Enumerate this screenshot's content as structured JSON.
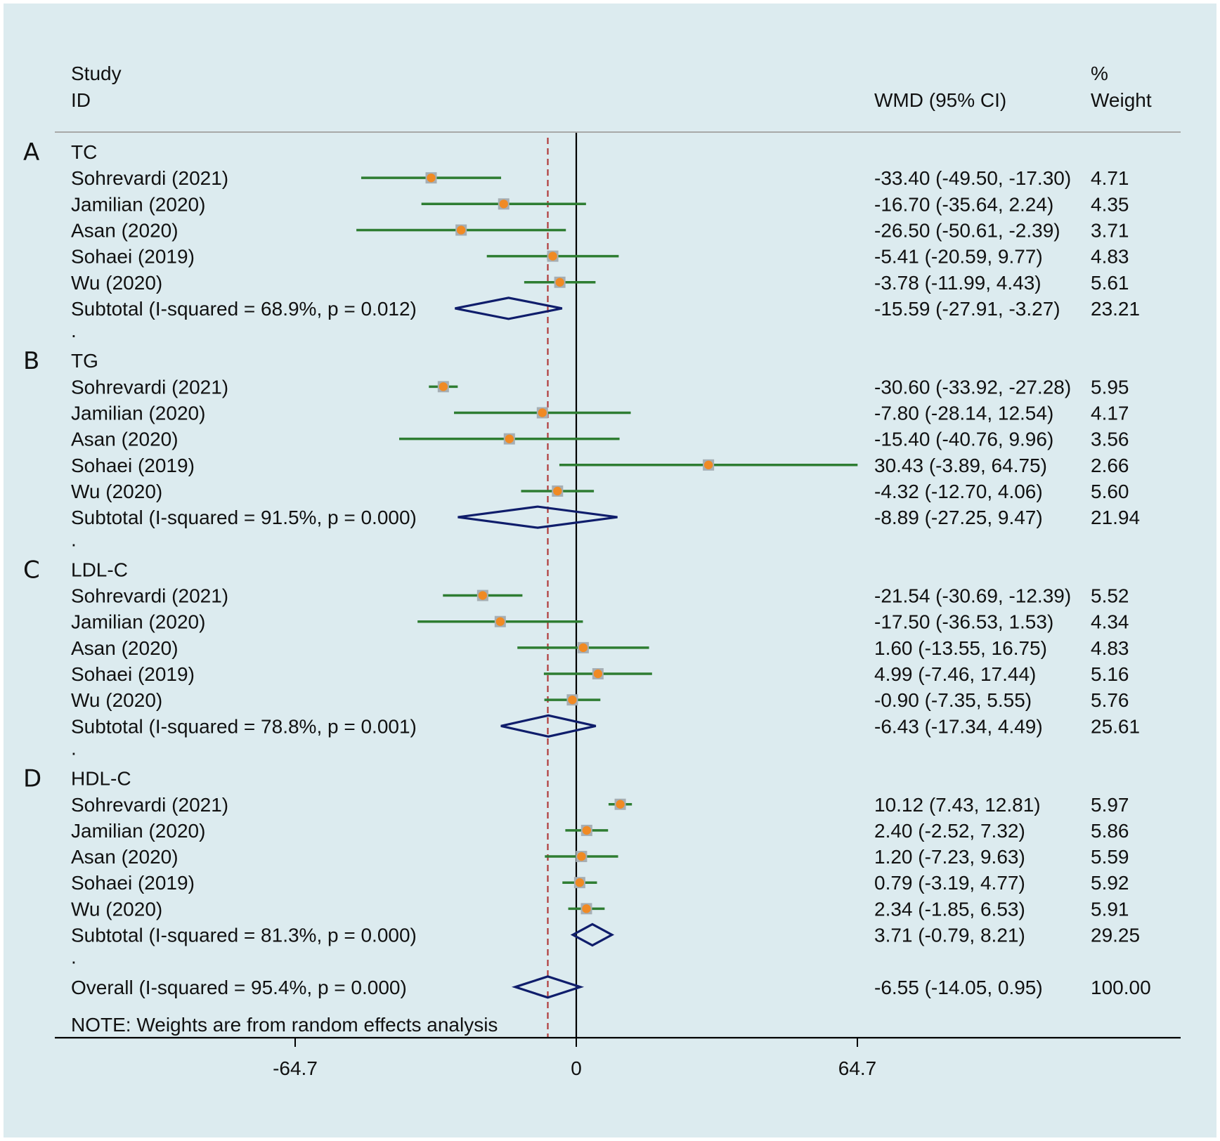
{
  "chart_data": {
    "type": "forest",
    "header": {
      "study_line1": "Study",
      "study_line2": "ID",
      "effect_label": "WMD (95% CI)",
      "weight_line1": "%",
      "weight_line2": "Weight"
    },
    "groups": [
      {
        "letter": "A",
        "name": "TC",
        "studies": [
          {
            "label": "Sohrevardi  (2021)",
            "est": -33.4,
            "lo": -49.5,
            "hi": -17.3,
            "ci_text": "-33.40 (-49.50, -17.30)",
            "weight": "4.71"
          },
          {
            "label": "Jamilian (2020)",
            "est": -16.7,
            "lo": -35.64,
            "hi": 2.24,
            "ci_text": "-16.70 (-35.64, 2.24)",
            "weight": "4.35"
          },
          {
            "label": "Asan (2020)",
            "est": -26.5,
            "lo": -50.61,
            "hi": -2.39,
            "ci_text": "-26.50 (-50.61, -2.39)",
            "weight": "3.71"
          },
          {
            "label": "Sohaei  (2019)",
            "est": -5.41,
            "lo": -20.59,
            "hi": 9.77,
            "ci_text": "-5.41 (-20.59, 9.77)",
            "weight": "4.83"
          },
          {
            "label": "Wu (2020)",
            "est": -3.78,
            "lo": -11.99,
            "hi": 4.43,
            "ci_text": "-3.78 (-11.99, 4.43)",
            "weight": "5.61"
          }
        ],
        "subtotal": {
          "label": "Subtotal  (I-squared = 68.9%, p = 0.012)",
          "est": -15.59,
          "lo": -27.91,
          "hi": -3.27,
          "ci_text": "-15.59 (-27.91, -3.27)",
          "weight": "23.21"
        }
      },
      {
        "letter": "B",
        "name": "TG",
        "studies": [
          {
            "label": "Sohrevardi (2021)",
            "est": -30.6,
            "lo": -33.92,
            "hi": -27.28,
            "ci_text": "-30.60 (-33.92, -27.28)",
            "weight": "5.95"
          },
          {
            "label": "Jamilian (2020)",
            "est": -7.8,
            "lo": -28.14,
            "hi": 12.54,
            "ci_text": "-7.80 (-28.14, 12.54)",
            "weight": "4.17"
          },
          {
            "label": "Asan (2020)",
            "est": -15.4,
            "lo": -40.76,
            "hi": 9.96,
            "ci_text": "-15.40 (-40.76, 9.96)",
            "weight": "3.56"
          },
          {
            "label": "Sohaei (2019)",
            "est": 30.43,
            "lo": -3.89,
            "hi": 64.75,
            "ci_text": "30.43 (-3.89, 64.75)",
            "weight": "2.66"
          },
          {
            "label": "Wu (2020)",
            "est": -4.32,
            "lo": -12.7,
            "hi": 4.06,
            "ci_text": "-4.32 (-12.70, 4.06)",
            "weight": "5.60"
          }
        ],
        "subtotal": {
          "label": "Subtotal  (I-squared = 91.5%, p = 0.000)",
          "est": -8.89,
          "lo": -27.25,
          "hi": 9.47,
          "ci_text": "-8.89 (-27.25, 9.47)",
          "weight": "21.94"
        }
      },
      {
        "letter": "C",
        "name": "LDL-C",
        "studies": [
          {
            "label": "Sohrevardi (2021)",
            "est": -21.54,
            "lo": -30.69,
            "hi": -12.39,
            "ci_text": "-21.54 (-30.69, -12.39)",
            "weight": "5.52"
          },
          {
            "label": "Jamilian (2020)",
            "est": -17.5,
            "lo": -36.53,
            "hi": 1.53,
            "ci_text": "-17.50 (-36.53, 1.53)",
            "weight": "4.34"
          },
          {
            "label": "Asan (2020)",
            "est": 1.6,
            "lo": -13.55,
            "hi": 16.75,
            "ci_text": "1.60 (-13.55, 16.75)",
            "weight": "4.83"
          },
          {
            "label": "Sohaei  (2019)",
            "est": 4.99,
            "lo": -7.46,
            "hi": 17.44,
            "ci_text": "4.99 (-7.46, 17.44)",
            "weight": "5.16"
          },
          {
            "label": "Wu (2020)",
            "est": -0.9,
            "lo": -7.35,
            "hi": 5.55,
            "ci_text": "-0.90 (-7.35, 5.55)",
            "weight": "5.76"
          }
        ],
        "subtotal": {
          "label": "Subtotal  (I-squared = 78.8%, p = 0.001)",
          "est": -6.43,
          "lo": -17.34,
          "hi": 4.49,
          "ci_text": "-6.43 (-17.34, 4.49)",
          "weight": "25.61"
        }
      },
      {
        "letter": "D",
        "name": "HDL-C",
        "studies": [
          {
            "label": "Sohrevardi (2021)",
            "est": 10.12,
            "lo": 7.43,
            "hi": 12.81,
            "ci_text": "10.12 (7.43, 12.81)",
            "weight": "5.97"
          },
          {
            "label": "Jamilian (2020)",
            "est": 2.4,
            "lo": -2.52,
            "hi": 7.32,
            "ci_text": "2.40 (-2.52, 7.32)",
            "weight": "5.86"
          },
          {
            "label": "Asan  (2020)",
            "est": 1.2,
            "lo": -7.23,
            "hi": 9.63,
            "ci_text": "1.20 (-7.23, 9.63)",
            "weight": "5.59"
          },
          {
            "label": "Sohaei  (2019)",
            "est": 0.79,
            "lo": -3.19,
            "hi": 4.77,
            "ci_text": "0.79 (-3.19, 4.77)",
            "weight": "5.92"
          },
          {
            "label": "Wu (2020)",
            "est": 2.34,
            "lo": -1.85,
            "hi": 6.53,
            "ci_text": "2.34 (-1.85, 6.53)",
            "weight": "5.91"
          }
        ],
        "subtotal": {
          "label": "Subtotal  (I-squared = 81.3%, p = 0.000)",
          "est": 3.71,
          "lo": -0.79,
          "hi": 8.21,
          "ci_text": "3.71 (-0.79, 8.21)",
          "weight": "29.25"
        }
      }
    ],
    "spacer_text": ".",
    "overall": {
      "label": "Overall  (I-squared = 95.4%, p = 0.000)",
      "est": -6.55,
      "lo": -14.05,
      "hi": 0.95,
      "ci_text": "-6.55 (-14.05, 0.95)",
      "weight": "100.00"
    },
    "note": "NOTE: Weights are from random effects analysis",
    "x_ticks": [
      {
        "value": -64.7,
        "label": "-64.7"
      },
      {
        "value": 0,
        "label": "0"
      },
      {
        "value": 64.7,
        "label": "64.7"
      }
    ],
    "null_line": 0,
    "colors": {
      "background": "#dcebef",
      "ci_line": "#2e7d32",
      "point": "#f08a24",
      "weight_box": "#a6aeb3",
      "diamond": "#0f1d6b",
      "reference": "#b03a3a",
      "axis": "#000000",
      "rule": "#a8a8a8"
    }
  }
}
